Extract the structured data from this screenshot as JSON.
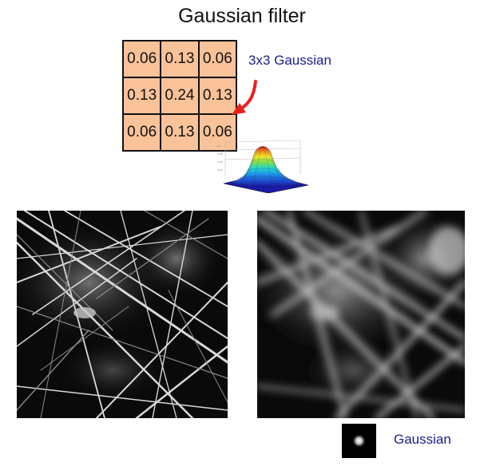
{
  "title": "Gaussian filter",
  "kernel": {
    "label": "3x3 Gaussian",
    "rows": [
      [
        "0.06",
        "0.13",
        "0.06"
      ],
      [
        "0.13",
        "0.24",
        "0.13"
      ],
      [
        "0.06",
        "0.13",
        "0.06"
      ]
    ],
    "cell_color": "#f9c299"
  },
  "bottom_label": "Gaussian",
  "colors": {
    "label_text": "#1a1f8c",
    "arrow": "#e8211d"
  }
}
